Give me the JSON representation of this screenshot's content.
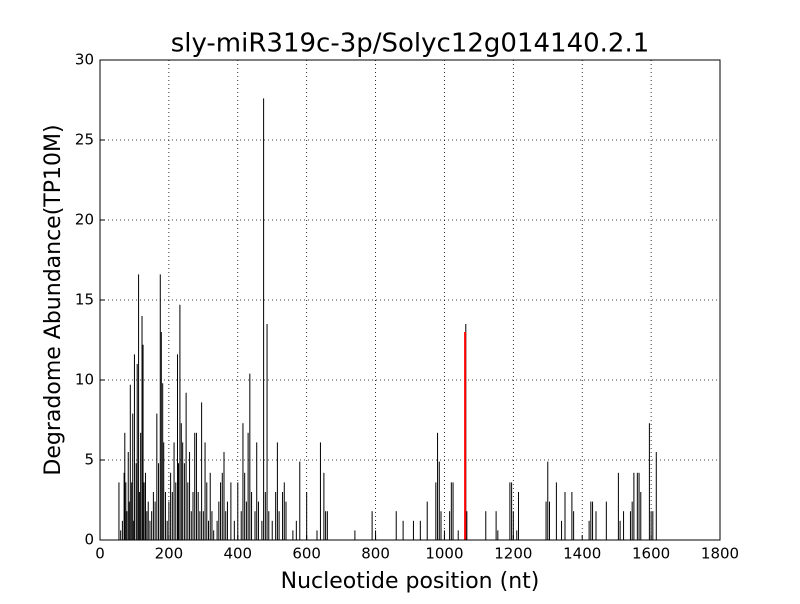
{
  "chart_data": {
    "type": "stem",
    "title": "sly-miR319c-3p/Solyc12g014140.2.1",
    "x_label": "Nucleotide position (nt)",
    "y_label": "Degradome Abundance(TP10M)",
    "xlim": [
      0,
      1800
    ],
    "ylim": [
      0,
      30
    ],
    "xticks": [
      0,
      200,
      400,
      600,
      800,
      1000,
      1200,
      1400,
      1600,
      1800
    ],
    "yticks": [
      0,
      5,
      10,
      15,
      20,
      25,
      30
    ],
    "grid": true,
    "series": [
      {
        "color": "#000000",
        "x": [
          55,
          60,
          65,
          70,
          72,
          75,
          78,
          82,
          85,
          88,
          92,
          95,
          98,
          100,
          105,
          108,
          112,
          115,
          118,
          122,
          125,
          128,
          132,
          136,
          140,
          145,
          150,
          155,
          160,
          165,
          170,
          175,
          178,
          182,
          185,
          190,
          195,
          200,
          205,
          210,
          215,
          220,
          225,
          228,
          232,
          236,
          240,
          245,
          250,
          255,
          260,
          265,
          270,
          275,
          280,
          285,
          290,
          295,
          300,
          305,
          310,
          315,
          320,
          325,
          330,
          340,
          345,
          350,
          355,
          360,
          365,
          370,
          380,
          390,
          400,
          410,
          415,
          420,
          425,
          430,
          435,
          440,
          450,
          455,
          460,
          470,
          475,
          480,
          485,
          490,
          500,
          510,
          515,
          520,
          530,
          535,
          540,
          560,
          570,
          580,
          600,
          630,
          640,
          650,
          655,
          660,
          740,
          790,
          800,
          860,
          880,
          910,
          930,
          950,
          975,
          980,
          985,
          990,
          1000,
          1015,
          1020,
          1025,
          1040,
          1062,
          1065,
          1120,
          1150,
          1155,
          1190,
          1195,
          1200,
          1210,
          1215,
          1295,
          1300,
          1305,
          1325,
          1340,
          1350,
          1370,
          1375,
          1420,
          1425,
          1430,
          1440,
          1470,
          1505,
          1510,
          1520,
          1540,
          1545,
          1550,
          1560,
          1565,
          1570,
          1595,
          1600,
          1605,
          1615
        ],
        "values": [
          3.6,
          0.6,
          1.2,
          4.2,
          6.7,
          3.6,
          1.8,
          5.5,
          2.4,
          9.7,
          3.6,
          7.9,
          1.2,
          11.6,
          4.8,
          11,
          16.6,
          3,
          6.7,
          14,
          12.2,
          3.6,
          4.2,
          1.8,
          2.4,
          1.2,
          1.8,
          3,
          2.4,
          7.9,
          4.8,
          16.6,
          13,
          9.8,
          6.1,
          3,
          1.2,
          2.4,
          4.2,
          3,
          6.1,
          3.6,
          11.6,
          4.8,
          14.7,
          7.3,
          6.1,
          4.8,
          9.2,
          3.6,
          5.5,
          1.8,
          3,
          6.7,
          6.7,
          3,
          1.8,
          8.6,
          1.8,
          6.1,
          3.6,
          1.2,
          4.2,
          1.8,
          0.6,
          1.2,
          2.4,
          3.6,
          4.2,
          5.5,
          1.8,
          2.4,
          3.6,
          1.2,
          3.6,
          1.8,
          7.3,
          4.2,
          2.4,
          6.7,
          10.4,
          3,
          1.8,
          6.1,
          2.4,
          1.2,
          27.6,
          3,
          13.5,
          1.8,
          1.2,
          3,
          6.1,
          1.8,
          3,
          3.6,
          2.4,
          0.6,
          1.2,
          4.9,
          3,
          0.6,
          6.1,
          4.2,
          1.8,
          1.8,
          0.6,
          1.8,
          0.6,
          1.8,
          1.2,
          1.2,
          1.2,
          2.4,
          3.6,
          6.7,
          4.9,
          1.8,
          0.6,
          1.8,
          3.6,
          3.6,
          0.6,
          13.5,
          1.8,
          1.8,
          1.8,
          0.6,
          3.6,
          3.6,
          1.8,
          0.6,
          3,
          2.4,
          4.9,
          2.4,
          3.6,
          1.2,
          3,
          3,
          1.8,
          1.2,
          2.4,
          2.4,
          1.8,
          2.4,
          4.2,
          1.2,
          1.8,
          1.8,
          2.4,
          4.2,
          4.2,
          4.2,
          3,
          7.3,
          1.8,
          1.8,
          5.5
        ]
      },
      {
        "color": "#ff0000",
        "x": [
          1060
        ],
        "values": [
          13
        ]
      }
    ]
  }
}
